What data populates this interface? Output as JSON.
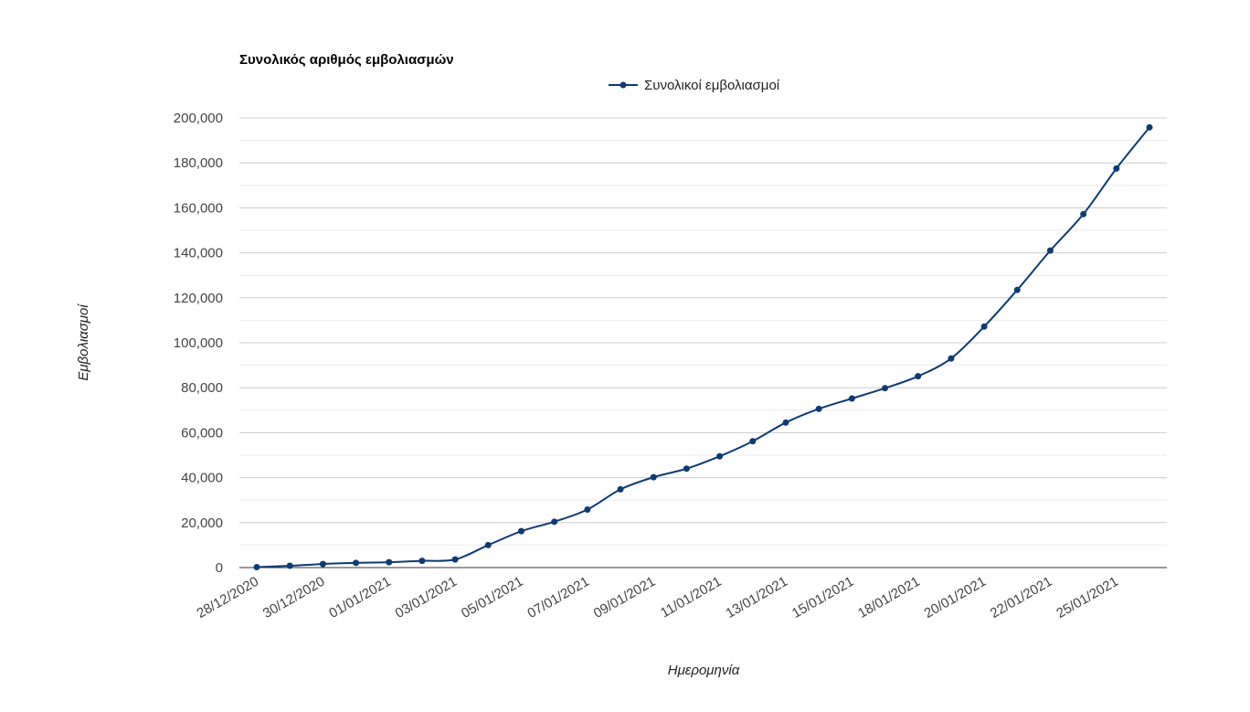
{
  "chart_data": {
    "type": "line",
    "title": "Συνολικός αριθμός εμβολιασμών",
    "xlabel": "Ημερομηνία",
    "ylabel": "Εμβολιασμοί",
    "legend_position": "top-center",
    "grid": true,
    "ylim": [
      0,
      200000
    ],
    "yticks": [
      "0",
      "20,000",
      "40,000",
      "60,000",
      "80,000",
      "100,000",
      "120,000",
      "140,000",
      "160,000",
      "180,000",
      "200,000"
    ],
    "xtick_labels": [
      "28/12/2020",
      "30/12/2020",
      "01/01/2021",
      "03/01/2021",
      "05/01/2021",
      "07/01/2021",
      "09/01/2021",
      "11/01/2021",
      "13/01/2021",
      "15/01/2021",
      "18/01/2021",
      "20/01/2021",
      "22/01/2021",
      "25/01/2021"
    ],
    "series": [
      {
        "name": "Συνολικοί εμβολιασμοί",
        "color": "#0d3b73",
        "values": [
          200,
          800,
          1600,
          2100,
          2400,
          3000,
          3600,
          10000,
          16200,
          20400,
          25800,
          34800,
          40200,
          44000,
          49500,
          56200,
          64500,
          70600,
          75200,
          79800,
          85100,
          93000,
          107200,
          123500,
          141000,
          157200,
          177500,
          195800
        ]
      }
    ]
  }
}
